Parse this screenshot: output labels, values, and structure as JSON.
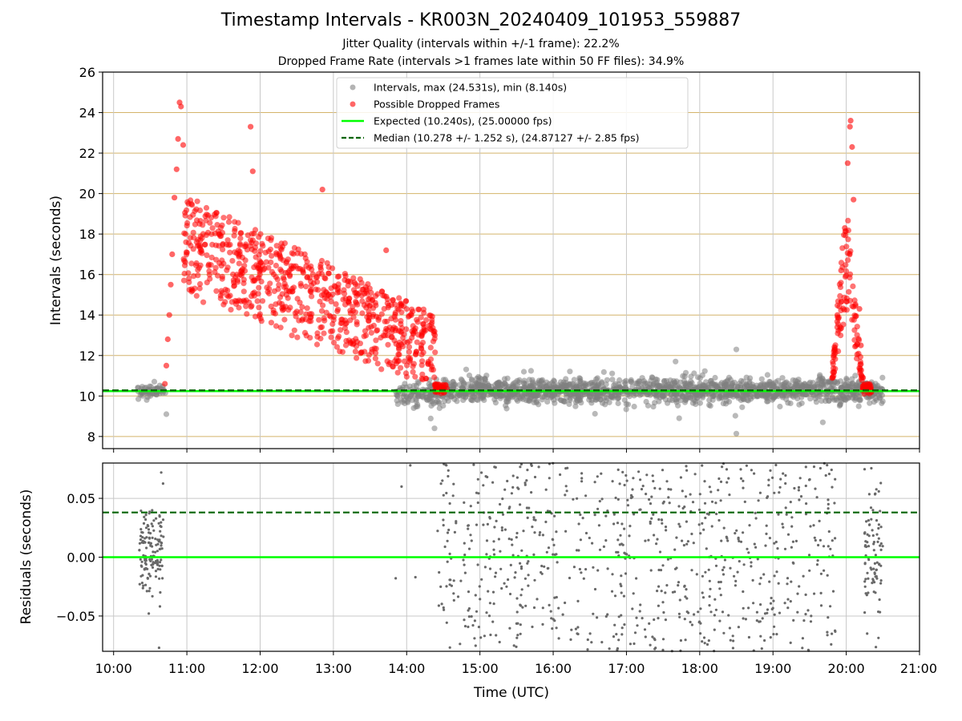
{
  "chart_data": {
    "title": "Timestamp Intervals - KR003N_20240409_101953_559887",
    "subtitle": [
      "Jitter Quality (intervals within +/-1 frame): 22.2%",
      "Dropped Frame Rate (intervals >1 frames late within 50 FF files): 34.9%"
    ],
    "colors": {
      "intervals": "#808080",
      "dropped": "#ff0000",
      "expected": "#00ff00",
      "median": "#006400",
      "residuals": "#696969",
      "hgrid": "#d4b46a",
      "vgrid": "#c8c8c8"
    },
    "top": {
      "type": "scatter",
      "xlabel": "Time (UTC)",
      "ylabel": "Intervals (seconds)",
      "xlim": [
        9.85,
        21.0
      ],
      "ylim": [
        7.4,
        26.0
      ],
      "yticks": [
        8,
        10,
        12,
        14,
        16,
        18,
        20,
        22,
        24,
        26
      ],
      "grid": true,
      "legend_placement": "upper-center",
      "legend": [
        {
          "label": "Intervals, max (24.531s), min (8.140s)",
          "kind": "dot",
          "color": "#808080"
        },
        {
          "label": "Possible Dropped Frames",
          "kind": "dot",
          "color": "#ff0000"
        },
        {
          "label": "Expected (10.240s), (25.00000 fps)",
          "kind": "line",
          "color": "#00ff00"
        },
        {
          "label": "Median (10.278 +/- 1.252 s), (24.87127 +/- 2.85 fps)",
          "kind": "dash",
          "color": "#006400"
        }
      ],
      "expected_y": 10.24,
      "median_y": 10.278,
      "series": [
        {
          "name": "Intervals",
          "ranges": [
            {
              "x0": 10.33,
              "x1": 10.72,
              "mean": 10.26,
              "spread": 0.15,
              "n": 60
            },
            {
              "x0": 13.85,
              "x1": 14.52,
              "mean": 10.1,
              "spread": 0.3,
              "n": 120
            },
            {
              "x0": 14.52,
              "x1": 20.5,
              "mean": 10.28,
              "spread": 0.3,
              "n": 1500
            }
          ],
          "points": [
            {
              "x": 10.72,
              "y": 9.1
            },
            {
              "x": 14.38,
              "y": 8.4
            },
            {
              "x": 13.88,
              "y": 9.6
            },
            {
              "x": 17.67,
              "y": 11.7
            },
            {
              "x": 18.5,
              "y": 12.3
            },
            {
              "x": 18.5,
              "y": 8.14
            },
            {
              "x": 17.72,
              "y": 8.9
            },
            {
              "x": 19.68,
              "y": 8.7
            },
            {
              "x": 15.6,
              "y": 11.2
            }
          ]
        },
        {
          "name": "Possible Dropped Frames",
          "points": [
            {
              "x": 10.7,
              "y": 10.6
            },
            {
              "x": 10.72,
              "y": 11.5
            },
            {
              "x": 10.74,
              "y": 12.8
            },
            {
              "x": 10.76,
              "y": 14.0
            },
            {
              "x": 10.78,
              "y": 15.5
            },
            {
              "x": 10.8,
              "y": 17.0
            },
            {
              "x": 10.83,
              "y": 19.8
            },
            {
              "x": 10.86,
              "y": 21.2
            },
            {
              "x": 10.88,
              "y": 22.7
            },
            {
              "x": 10.9,
              "y": 24.5
            },
            {
              "x": 10.92,
              "y": 24.3
            },
            {
              "x": 10.95,
              "y": 22.4
            },
            {
              "x": 11.87,
              "y": 23.3
            },
            {
              "x": 11.9,
              "y": 21.1
            },
            {
              "x": 12.85,
              "y": 20.2
            },
            {
              "x": 13.72,
              "y": 17.2
            },
            {
              "x": 20.02,
              "y": 21.5
            },
            {
              "x": 20.05,
              "y": 23.3
            },
            {
              "x": 20.06,
              "y": 23.6
            },
            {
              "x": 20.08,
              "y": 22.3
            },
            {
              "x": 20.1,
              "y": 19.7
            },
            {
              "x": 19.88,
              "y": 14.0
            },
            {
              "x": 19.93,
              "y": 16.2
            },
            {
              "x": 19.98,
              "y": 18.3
            },
            {
              "x": 20.18,
              "y": 14.3
            },
            {
              "x": 20.2,
              "y": 12.5
            },
            {
              "x": 20.23,
              "y": 10.9
            }
          ],
          "ranges": [
            {
              "x0": 10.95,
              "x1": 14.4,
              "y_top0": 20.0,
              "y_top1": 14.0,
              "y_bot0": 15.0,
              "y_bot1": 10.3,
              "n": 780
            },
            {
              "x0": 14.38,
              "x1": 14.55,
              "y_top0": 10.6,
              "y_top1": 10.6,
              "y_bot0": 10.1,
              "y_bot1": 10.1,
              "n": 40
            },
            {
              "x0": 19.8,
              "x1": 20.0,
              "y_top0": 11.0,
              "y_top1": 20.0,
              "y_bot0": 10.4,
              "y_bot1": 14.0,
              "n": 60
            },
            {
              "x0": 20.0,
              "x1": 20.22,
              "y_top0": 20.0,
              "y_top1": 11.0,
              "y_bot0": 14.0,
              "y_bot1": 10.4,
              "n": 55
            },
            {
              "x0": 20.22,
              "x1": 20.35,
              "y_top0": 10.6,
              "y_top1": 10.6,
              "y_bot0": 10.1,
              "y_bot1": 10.1,
              "n": 35
            }
          ]
        }
      ]
    },
    "bottom": {
      "type": "scatter",
      "xlabel": "Time (UTC)",
      "ylabel": "Residuals (seconds)",
      "xlim": [
        9.85,
        21.0
      ],
      "ylim": [
        -0.08,
        0.08
      ],
      "yticks": [
        -0.05,
        0.0,
        0.05
      ],
      "ytick_labels": [
        "−0.05",
        "0.00",
        "0.05"
      ],
      "xticks": [
        10,
        11,
        12,
        13,
        14,
        15,
        16,
        17,
        18,
        19,
        20,
        21
      ],
      "xtick_labels": [
        "10:00",
        "11:00",
        "12:00",
        "13:00",
        "14:00",
        "15:00",
        "16:00",
        "17:00",
        "18:00",
        "19:00",
        "20:00",
        "21:00"
      ],
      "expected_y": 0.0,
      "median_y": 0.038,
      "series": [
        {
          "name": "Residuals",
          "ranges": [
            {
              "x0": 10.35,
              "x1": 10.68,
              "mean": 0.005,
              "spread": 0.025,
              "n": 140
            },
            {
              "x0": 14.42,
              "x1": 19.85,
              "mean": 0.0,
              "spread": 0.08,
              "n": 780
            },
            {
              "x0": 20.25,
              "x1": 20.5,
              "mean": 0.005,
              "spread": 0.04,
              "n": 90
            }
          ],
          "points": [
            {
              "x": 13.85,
              "y": -0.018
            },
            {
              "x": 13.93,
              "y": 0.06
            },
            {
              "x": 14.12,
              "y": -0.017
            },
            {
              "x": 14.05,
              "y": 0.078
            },
            {
              "x": 10.62,
              "y": -0.077
            },
            {
              "x": 10.65,
              "y": 0.072
            }
          ]
        }
      ]
    }
  }
}
